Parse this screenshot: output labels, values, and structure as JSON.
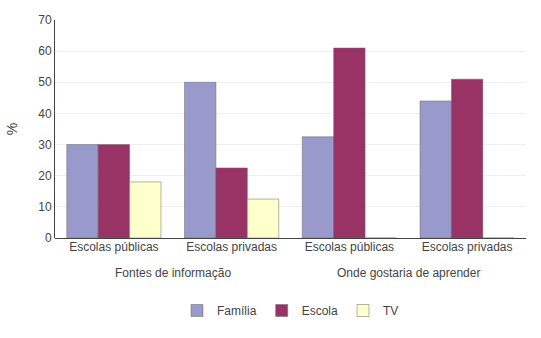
{
  "chart_data": {
    "type": "bar",
    "categories": [
      "Escolas públicas",
      "Escolas privadas",
      "Escolas públicas",
      "Escolas privadas"
    ],
    "series": [
      {
        "name": "Família",
        "color": "#9999cc",
        "values": [
          30,
          50,
          32.5,
          44
        ]
      },
      {
        "name": "Escola",
        "color": "#993366",
        "values": [
          30,
          22.5,
          61,
          51
        ]
      },
      {
        "name": "TV",
        "color": "#ffffcc",
        "values": [
          18,
          12.5,
          0,
          0
        ]
      }
    ],
    "annotations": [
      "Fontes de informação",
      "Onde gostaria de aprender"
    ],
    "y_label": "%",
    "ylim": [
      0,
      70
    ],
    "yticks": [
      0,
      10,
      20,
      30,
      40,
      50,
      60,
      70
    ],
    "grid": true,
    "legend": "bottom"
  }
}
